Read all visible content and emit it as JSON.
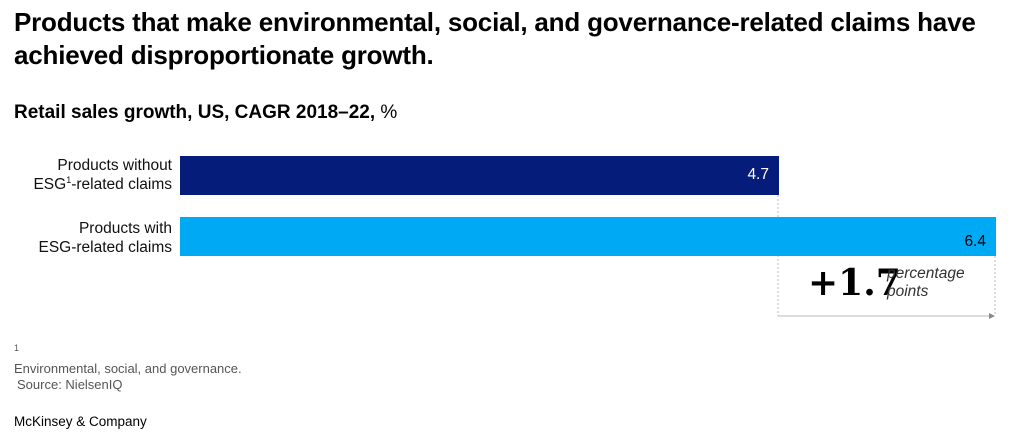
{
  "title": "Products that make environmental, social, and governance-related claims have achieved disproportionate growth.",
  "subtitle": {
    "bold": "Retail sales growth, US, CAGR 2018–22,",
    "unit": " %"
  },
  "chart_data": {
    "type": "bar",
    "orientation": "horizontal",
    "title": "Retail sales growth, US, CAGR 2018–22, %",
    "categories": [
      {
        "lines": [
          "Products without",
          "ESG"
        ],
        "sup": "1",
        "tail": "-related claims"
      },
      {
        "lines": [
          "Products with",
          "ESG-related claims"
        ],
        "sup": "",
        "tail": ""
      }
    ],
    "category_names": [
      "Products without ESG-related claims",
      "Products with ESG-related claims"
    ],
    "values": [
      4.7,
      6.4
    ],
    "value_labels": [
      "4.7",
      "6.4"
    ],
    "colors": [
      "#051c7a",
      "#00a9f4"
    ],
    "xlim": [
      0,
      6.4
    ],
    "annotation": {
      "value": "+1.7",
      "text_line1": "percentage",
      "text_line2": "points"
    }
  },
  "footnote": {
    "note_sup": "1",
    "note": "Environmental, social, and governance.",
    "source": "Source: NielsenIQ"
  },
  "brand": "McKinsey & Company"
}
